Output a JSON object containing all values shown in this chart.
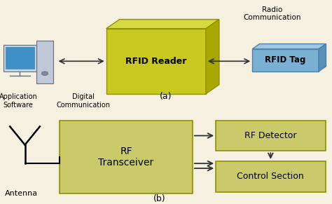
{
  "background_color": "#f5f0e0",
  "rfid_reader_face": "#c8c820",
  "rfid_reader_top": "#d8d840",
  "rfid_reader_right": "#a8a800",
  "rfid_tag_face": "#7ab0d4",
  "rfid_tag_top": "#a0c8e0",
  "rfid_tag_right": "#5890b8",
  "transceiver_color": "#caca6a",
  "detector_color": "#caca6a",
  "control_color": "#caca6a",
  "box_edge": "#909000",
  "arrow_color": "#303030",
  "text_color": "#000000",
  "top": {
    "radio_comm": "Radio\nCommunication",
    "rfid_reader": "RFID Reader",
    "rfid_tag": "RFID Tag",
    "app_software": "Application\nSoftware",
    "digital_comm": "Digital\nCommunication",
    "label": "(a)"
  },
  "bot": {
    "antenna": "Antenna",
    "transceiver": "RF\nTransceiver",
    "rf_detector": "RF Detector",
    "control": "Control Section",
    "label": "(b)"
  }
}
